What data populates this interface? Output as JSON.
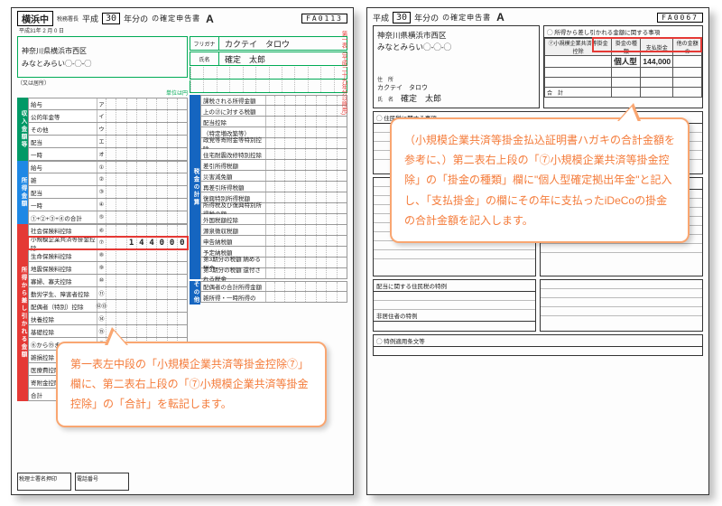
{
  "header": {
    "office": "横浜中",
    "era": "平成",
    "year": "30",
    "year_suffix": "年分の",
    "title_tail": "の確定申告書",
    "letter": "A",
    "fa_left": "FA0113",
    "fa_right": "FA0067",
    "date_small": "平成31年 2 月 0 日",
    "side_note": "第一表（平成二十九年分以降用)",
    "side_note_red": "復興特別所得税の記"
  },
  "applicant": {
    "address1": "神奈川県横浜市西区",
    "address2": "みなとみらい◯-◯-◯",
    "kana_label": "フリガナ",
    "kana": "カクテイ　タロウ",
    "name_label": "氏名",
    "name": "確定　太郎",
    "addr_label_left": "（又は居所）"
  },
  "units_note": "単位は円",
  "left_form": {
    "sections": [
      {
        "rail": "収入金額等",
        "color": "rail-green",
        "rows": [
          {
            "lbl": "給与",
            "num": "ア"
          },
          {
            "lbl": "公的年金等",
            "num": "イ"
          },
          {
            "lbl": "その他",
            "num": "ウ"
          },
          {
            "lbl": "配当",
            "num": "エ"
          },
          {
            "lbl": "一時",
            "num": "オ"
          }
        ]
      },
      {
        "rail": "所得金額",
        "color": "rail-blue1",
        "rows": [
          {
            "lbl": "給与",
            "num": "①"
          },
          {
            "lbl": "雑",
            "num": "②"
          },
          {
            "lbl": "配当",
            "num": "③"
          },
          {
            "lbl": "一時",
            "num": "④"
          },
          {
            "lbl": "①+②+③+④の合計",
            "num": "⑤"
          }
        ]
      },
      {
        "rail": "所得から差し引かれる金額",
        "color": "rail-red",
        "rows": [
          {
            "lbl": "社会保険料控除",
            "num": "⑥"
          },
          {
            "lbl": "小規模企業共済等掛金控除",
            "num": "⑦",
            "hl": true,
            "value": "144000"
          },
          {
            "lbl": "生命保険料控除",
            "num": "⑧"
          },
          {
            "lbl": "地震保険料控除",
            "num": "⑨"
          },
          {
            "lbl": "寡婦、寡夫控除",
            "num": "⑩"
          },
          {
            "lbl": "勤労学生、障害者控除",
            "num": "⑪"
          },
          {
            "lbl": "配偶者（特別）控除",
            "num": "⑫⑬"
          },
          {
            "lbl": "扶養控除",
            "num": "⑭"
          },
          {
            "lbl": "基礎控除",
            "num": "⑮"
          },
          {
            "lbl": "⑥から⑮までの計",
            "num": "⑯"
          },
          {
            "lbl": "雑損控除",
            "num": "⑰"
          },
          {
            "lbl": "医療費控除",
            "num": "⑱"
          },
          {
            "lbl": "寄附金控除",
            "num": "⑲"
          },
          {
            "lbl": "合計",
            "num": "⑳"
          }
        ]
      }
    ],
    "right_sections": {
      "tax_rail": "税金の計算",
      "rows": [
        "課税される所得金額",
        "上の㉑に対する税額",
        "配当控除",
        "（特定増改築等）",
        "政党等寄附金等特別控除",
        "住宅耐震改修特別控除",
        "差引所得税額",
        "災害減免額",
        "再差引所得税額",
        "復興特別所得税額",
        "所得税及び復興特別所得税の額",
        "外国税額控除",
        "源泉徴収税額",
        "申告納税額",
        "予定納税額",
        "第3期分の税額  納める税金",
        "第3期分の税額  還付される税金"
      ],
      "other_rail": "その他",
      "other_rows": [
        "配偶者の合計所得金額",
        "雑所得・一時所得の"
      ]
    }
  },
  "right_form": {
    "deduction_caption": "◯ 所得から差し引かれる金額に関する事項",
    "deduction_cols": [
      "⑦小規模企業共済等掛金控除",
      "掛金の種類",
      "支払掛金",
      "他の金額の"
    ],
    "highlight_type": "個人型",
    "highlight_amount": "144,000",
    "sum_label": "合　計",
    "residence_caption": "◯ 住民税に関する事項",
    "ext_caption": "◯ 扶養控除額の合計",
    "bottom1": "配当に関する住民税の特例",
    "bottom2": "非居住者の特例",
    "bottom3": "◯ 特例適用条文等",
    "addr_labels": {
      "addr": "住　所",
      "name": "氏　名"
    }
  },
  "callouts": {
    "c1": "第一表左中段の「小規模企業共済等掛金控除⑦」欄に、第二表右上段の「⑦小規模企業共済等掛金控除」の「合計」を転記します。",
    "c2": "（小規模企業共済等掛金払込証明書ハガキの合計金額を参考に、）第二表右上段の「⑦小規模企業共済等掛金控除」の「掛金の種類」欄に\"個人型確定拠出年金\"と記入し、「支払掛金」の欄にその年に支払ったiDeCoの掛金の合計金額を記入します。"
  },
  "bottom_boxes": [
    "税理士署名押印",
    "電話番号"
  ],
  "colors": {
    "highlight": "#e53935",
    "callout_border": "#f9a671",
    "callout_text": "#f47b3a"
  }
}
